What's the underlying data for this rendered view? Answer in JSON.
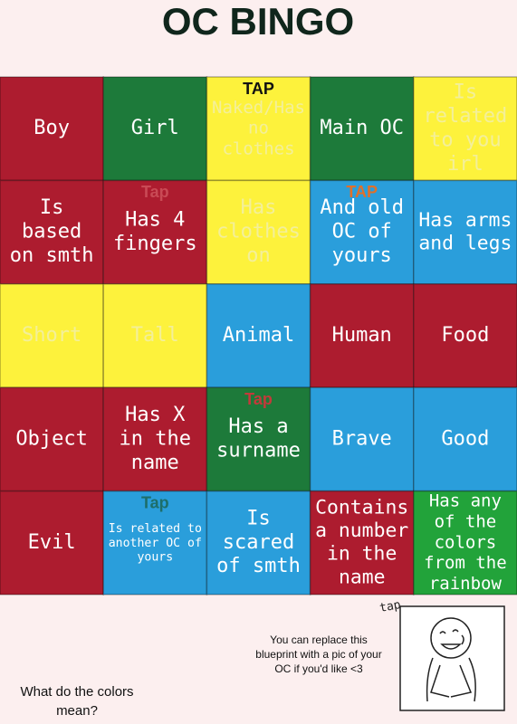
{
  "title": "OC BINGO",
  "grid": {
    "rows": [
      [
        {
          "lines": [
            "Boy"
          ],
          "color": "#ad1c2f",
          "text_color": "#ffffff"
        },
        {
          "lines": [
            "Girl"
          ],
          "color": "#1d7a3a",
          "text_color": "#ffffff"
        },
        {
          "lines": [
            "Naked/Has",
            "no",
            "clothes"
          ],
          "color": "#fdf23c",
          "text_color": "#f3ef9a",
          "tap": {
            "text": "TAP",
            "color": "#111111"
          }
        },
        {
          "lines": [
            "Main OC"
          ],
          "color": "#1d7a3a",
          "text_color": "#ffffff"
        },
        {
          "lines": [
            "Is",
            "related",
            "to you",
            "irl"
          ],
          "color": "#fdf23c",
          "text_color": "#f3ef9a"
        }
      ],
      [
        {
          "lines": [
            "Is",
            "based",
            "on smth"
          ],
          "color": "#ad1c2f",
          "text_color": "#ffffff"
        },
        {
          "lines": [
            "Has 4",
            "fingers"
          ],
          "color": "#ad1c2f",
          "text_color": "#ffffff",
          "tap": {
            "text": "Tap",
            "color": "#c94a55"
          }
        },
        {
          "lines": [
            "Has",
            "clothes",
            "on"
          ],
          "color": "#fdf23c",
          "text_color": "#f3ef9a"
        },
        {
          "lines": [
            "And old",
            "OC of",
            "yours"
          ],
          "color": "#2a9edb",
          "text_color": "#ffffff",
          "tap": {
            "text": "TAP",
            "color": "#e0702a"
          }
        },
        {
          "lines": [
            "Has arms",
            "and legs"
          ],
          "color": "#2a9edb",
          "text_color": "#ffffff"
        }
      ],
      [
        {
          "lines": [
            "Short"
          ],
          "color": "#fdf23c",
          "text_color": "#f3ef9a"
        },
        {
          "lines": [
            "Tall"
          ],
          "color": "#fdf23c",
          "text_color": "#f3ef9a"
        },
        {
          "lines": [
            "Animal"
          ],
          "color": "#2a9edb",
          "text_color": "#ffffff"
        },
        {
          "lines": [
            "Human"
          ],
          "color": "#ad1c2f",
          "text_color": "#ffffff"
        },
        {
          "lines": [
            "Food"
          ],
          "color": "#ad1c2f",
          "text_color": "#ffffff"
        }
      ],
      [
        {
          "lines": [
            "Object"
          ],
          "color": "#ad1c2f",
          "text_color": "#ffffff"
        },
        {
          "lines": [
            "Has X",
            "in the",
            "name"
          ],
          "color": "#ad1c2f",
          "text_color": "#ffffff"
        },
        {
          "lines": [
            "Has a",
            "surname"
          ],
          "color": "#1d7a3a",
          "text_color": "#ffffff",
          "tap": {
            "text": "Tap",
            "color": "#c23a3a"
          }
        },
        {
          "lines": [
            "Brave"
          ],
          "color": "#2a9edb",
          "text_color": "#ffffff"
        },
        {
          "lines": [
            "Good"
          ],
          "color": "#2a9edb",
          "text_color": "#ffffff"
        }
      ],
      [
        {
          "lines": [
            "Evil"
          ],
          "color": "#ad1c2f",
          "text_color": "#ffffff"
        },
        {
          "lines": [
            "Is related to",
            "another OC of",
            "yours"
          ],
          "color": "#2a9edb",
          "text_color": "#ffffff",
          "tap": {
            "text": "Tap",
            "color": "#1d6e6a"
          }
        },
        {
          "lines": [
            "Is",
            "scared",
            "of smth"
          ],
          "color": "#2a9edb",
          "text_color": "#ffffff"
        },
        {
          "lines": [
            "Contains",
            "a number",
            "in the",
            "name"
          ],
          "color": "#ad1c2f",
          "text_color": "#ffffff"
        },
        {
          "lines": [
            "Has any",
            "of the",
            "colors",
            "from the",
            "rainbow"
          ],
          "color": "#22a33a",
          "text_color": "#ffffff"
        }
      ]
    ]
  },
  "note": {
    "lines": [
      "You can replace this",
      "blueprint with a pic of your",
      "OC if you'd like <3"
    ]
  },
  "picture_tap": "tap",
  "question": {
    "lines": [
      "What do the colors",
      "mean?"
    ]
  }
}
